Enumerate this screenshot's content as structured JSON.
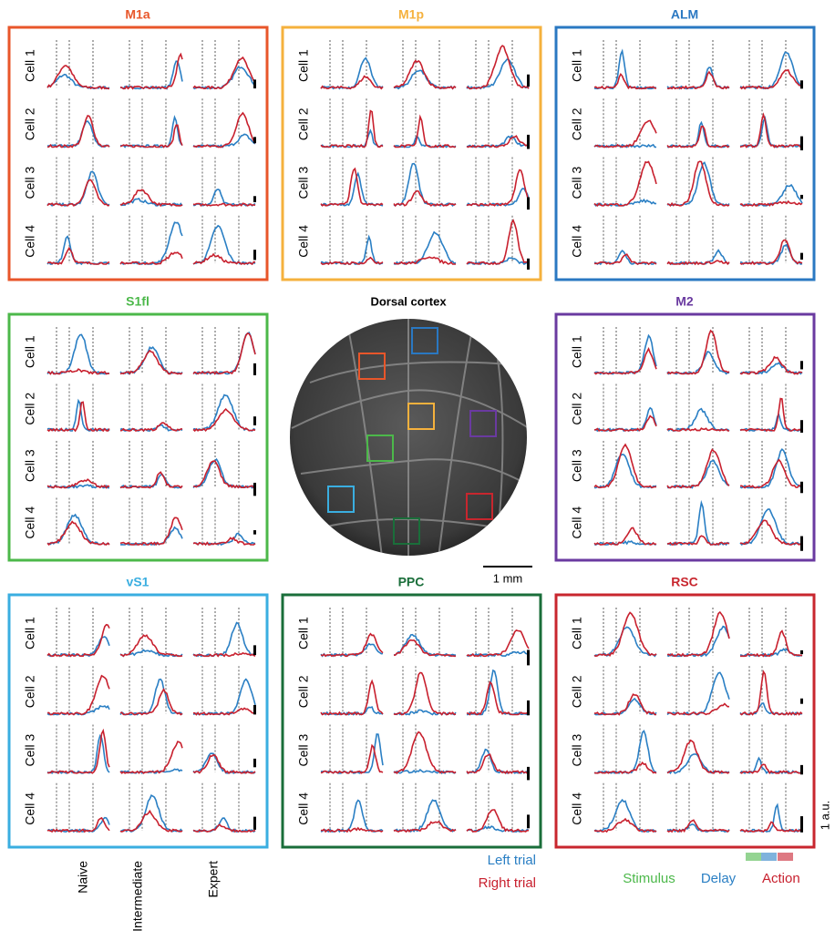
{
  "panels": [
    {
      "title": "M1a",
      "color": "#e8562a",
      "cells": [
        "Cell 1",
        "Cell 2",
        "Cell 3",
        "Cell 4"
      ]
    },
    {
      "title": "M1p",
      "color": "#f5b13d",
      "cells": [
        "Cell 1",
        "Cell 2",
        "Cell 3",
        "Cell 4"
      ]
    },
    {
      "title": "ALM",
      "color": "#2a78c2",
      "cells": [
        "Cell 1",
        "Cell 2",
        "Cell 3",
        "Cell 4"
      ]
    },
    {
      "title": "S1fl",
      "color": "#4cb84a",
      "cells": [
        "Cell 1",
        "Cell 2",
        "Cell 3",
        "Cell 4"
      ]
    },
    {
      "title": "M2",
      "color": "#6a3aa0",
      "cells": [
        "Cell 1",
        "Cell 2",
        "Cell 3",
        "Cell 4"
      ]
    },
    {
      "title": "vS1",
      "color": "#3aaee0",
      "cells": [
        "Cell 1",
        "Cell 2",
        "Cell 3",
        "Cell 4"
      ]
    },
    {
      "title": "PPC",
      "color": "#1a6e3a",
      "cells": [
        "Cell 1",
        "Cell 2",
        "Cell 3",
        "Cell 4"
      ]
    },
    {
      "title": "RSC",
      "color": "#c8262e",
      "cells": [
        "Cell 1",
        "Cell 2",
        "Cell 3",
        "Cell 4"
      ]
    }
  ],
  "cortex": {
    "title": "Dorsal cortex",
    "scale_label": "1 mm"
  },
  "stages": [
    "Naive",
    "Intermediate",
    "Expert"
  ],
  "legend": [
    {
      "name": "Left trial",
      "color": "#2a7fc4"
    },
    {
      "name": "Right trial",
      "color": "#c8202e"
    }
  ],
  "epochs": [
    {
      "name": "Stimulus",
      "color": "#4cb84a"
    },
    {
      "name": "Delay",
      "color": "#2a7fc4"
    },
    {
      "name": "Action",
      "color": "#c8202e"
    }
  ],
  "scale_unit": "1 a.u."
}
